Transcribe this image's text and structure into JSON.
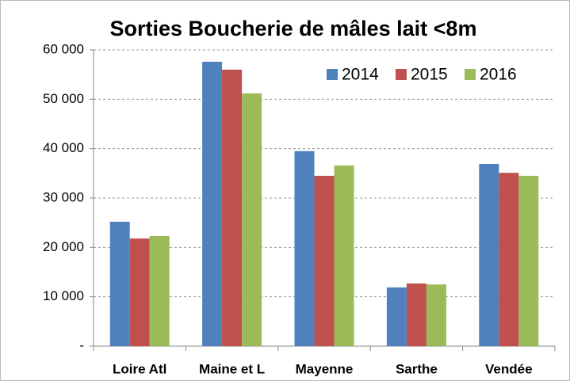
{
  "chart_data": {
    "type": "bar",
    "title": "Sorties Boucherie de mâles lait <8m",
    "categories": [
      "Loire Atl",
      "Maine et L",
      "Mayenne",
      "Sarthe",
      "Vendée"
    ],
    "series": [
      {
        "name": "2014",
        "color": "#4f81bd",
        "values": [
          25200,
          57600,
          39500,
          11900,
          36900
        ]
      },
      {
        "name": "2015",
        "color": "#c0504d",
        "values": [
          21800,
          56000,
          34500,
          12700,
          35100
        ]
      },
      {
        "name": "2016",
        "color": "#9bbb59",
        "values": [
          22300,
          51200,
          36600,
          12500,
          34500
        ]
      }
    ],
    "ylim": [
      0,
      60000
    ],
    "yticks": [
      {
        "value": 0,
        "label": "-"
      },
      {
        "value": 10000,
        "label": "10 000"
      },
      {
        "value": 20000,
        "label": "20 000"
      },
      {
        "value": 30000,
        "label": "30 000"
      },
      {
        "value": 40000,
        "label": "40 000"
      },
      {
        "value": 50000,
        "label": "50 000"
      },
      {
        "value": 60000,
        "label": "60 000"
      }
    ],
    "grid": true,
    "legend": "upper right"
  }
}
